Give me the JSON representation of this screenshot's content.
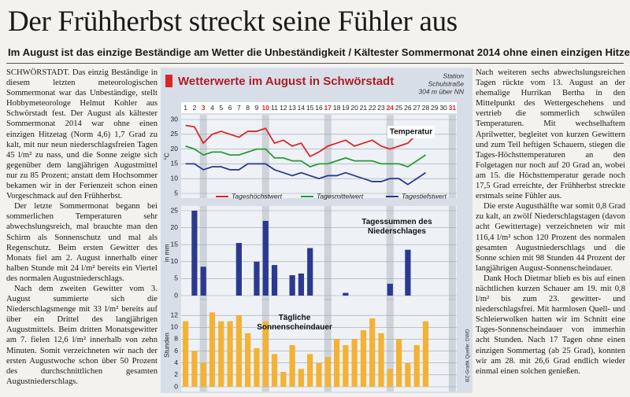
{
  "headline": "Der Frühherbst streckt seine Fühler aus",
  "subheadline": "Im August ist das einzige Beständige am Wetter die Unbeständigkeit / Kältester Sommermonat 2014 ohne einen einzigen Hitzetag",
  "article": {
    "column_1": [
      "SCHWÖRSTADT. Das einzig Beständige in diesem letzten meteorologischen Sommermonat war das Unbeständige, stellt Hobbymeteorologe Helmut Kohler aus Schwörstadt fest. Der August als kältester Sommermonat 2014 war ohne einen einzigen Hitzetag (Norm 4,6) 1,7 Grad zu kalt, mit nur neun niederschlagsfreien Tagen 45 l/m² zu nass, und die Sonne zeigte sich gegenüber dem langjährigen Augustmittel nur zu 85 Prozent; anstatt dem Hochsommer bekamen wir in der Ferienzeit schon einen Vorgeschmack auf den Frühherbst.",
      "Der letzte Sommermonat begann bei sommerlichen Temperaturen sehr abwechslungsreich, mal brauchte man den Schirm als Sonnenschutz und mal als Regenschutz. Beim ersten Gewitter des Monats fiel am 2. August innerhalb einer halben Stunde mit 24 l/m² bereits ein Viertel des normalen Augustniederschlags.",
      "Nach dem zweiten Gewitter vom 3. August summierte sich die Niederschlagsmenge mit 33 l/m² bereits auf über ein Drittel des langjährigen Augustmittels. Beim dritten Monatsgewitter am 7. fielen 12,6 l/m² innerhalb von zehn Minuten. Somit verzeichneten wir nach der ersten Augustwoche schon über 50 Prozent des durchschnittlichen gesamten Augustniederschlags."
    ],
    "column_2": [
      "Nach weiteren sechs abwechslungsreichen Tagen rückte vom 13. August an der ehemalige Hurrikan Bertha in den Mittelpunkt des Wettergeschehens und vertrieb die sommerlich schwülen Temperaturen. Mit wechselhaftem Aprilwetter, begleitet von kurzen Gewittern und zum Teil heftigen Schauern, stiegen die Tages-Höchsttemperaturen an den Folgetagen nur noch auf 20 Grad an, wobei am 15. die Höchsttemperatur gerade noch 17,5 Grad erreichte, der Frühherbst streckte erstmals seine Fühler aus.",
      "Die erste Augusthälfte war somit 0,8 Grad zu kalt, an zwölf Niederschlagstagen (davon acht Gewittertage) verzeichneten wir mit 116,4 l/m² schon 120 Prozent des normalen gesamten Augustniederschlags und die Sonne schien mit 98 Stunden 44 Prozent der langjährigen August-Sonnenscheindauer.",
      "Dank Hoch Dietmar blieb es bis auf einen nächtlichen kurzen Schauer am 19. mit 0,8 l/m² bis zum 23. gewitter- und niederschlagsfrei. Mit harmlosen Quell- und Schleierwolken hatten wir im Schnitt eine Tages-Sonnenscheindauer von immerhin acht Stunden. Nach 17 Tagen ohne einen einzigen Sommertag (ab 25 Grad), konnten wir am 28. mit 26,6 Grad endlich wieder einmal einen solchen genießen."
    ]
  },
  "graphic": {
    "title": "Wetterwerte im August in Schwörstadt",
    "station": [
      "Station",
      "Schulstraße",
      "304 m über NN"
    ],
    "credit": "BZ-Grafik Quelle: DWD"
  },
  "chart_data": [
    {
      "type": "line",
      "title": "Temperatur",
      "categories": [
        "1",
        "2",
        "3",
        "4",
        "5",
        "6",
        "7",
        "8",
        "9",
        "10",
        "11",
        "12",
        "13",
        "14",
        "15",
        "16",
        "17",
        "18",
        "19",
        "20",
        "21",
        "22",
        "23",
        "24",
        "25",
        "26",
        "27",
        "28",
        "29",
        "30",
        "31"
      ],
      "sundays": [
        3,
        10,
        17,
        24,
        31
      ],
      "sunday_color": "#d9262b",
      "ylabel": "°C",
      "ylim": [
        5,
        30
      ],
      "yticks": [
        5,
        10,
        15,
        20,
        25,
        30
      ],
      "grid": true,
      "series": [
        {
          "name": "Tageshöchstwert",
          "color": "#d9262b",
          "values": [
            28,
            27.5,
            22,
            25,
            26,
            25,
            24,
            26,
            26,
            27,
            22,
            23,
            21,
            22,
            17.5,
            19,
            21,
            22,
            23,
            21,
            22,
            23,
            21,
            20,
            21,
            22,
            25,
            26.6,
            null,
            null,
            null
          ]
        },
        {
          "name": "Tagesmittelwert",
          "color": "#2a9a3c",
          "values": [
            21,
            20,
            18,
            19,
            19,
            18,
            18,
            19,
            20,
            20,
            17,
            17,
            16,
            16,
            14,
            15,
            15,
            16,
            17,
            16,
            16,
            16,
            15,
            15,
            15,
            14,
            16,
            18,
            null,
            null,
            null
          ]
        },
        {
          "name": "Tagestiefstwert",
          "color": "#2b3990",
          "values": [
            15,
            15,
            13,
            14,
            14,
            13,
            13,
            15,
            15,
            15,
            13,
            12,
            11,
            12,
            11,
            10,
            11,
            11,
            12,
            11,
            10,
            9,
            9,
            10,
            10,
            8,
            10,
            12,
            null,
            null,
            null
          ]
        }
      ]
    },
    {
      "type": "bar",
      "title": "Tagessummen des Niederschlages",
      "ylabel": "in mm",
      "color": "#2b3990",
      "ylim": [
        0,
        25
      ],
      "yticks": [
        0,
        5,
        10,
        15,
        20,
        25
      ],
      "grid": true,
      "values": [
        0,
        25,
        8.5,
        0,
        0,
        0,
        15.5,
        0,
        10,
        22,
        9,
        0,
        6,
        6.5,
        14,
        0,
        0,
        0,
        0.8,
        0,
        0,
        0,
        0,
        3.5,
        0,
        13.5,
        0,
        0,
        null,
        null,
        null
      ]
    },
    {
      "type": "bar",
      "title": "Tägliche Sonnenscheindauer",
      "ylabel": "Stunden",
      "color": "#f4b234",
      "ylim": [
        0,
        14
      ],
      "yticks": [
        0,
        2,
        4,
        6,
        8,
        10,
        12
      ],
      "grid": true,
      "values": [
        11,
        6,
        4,
        12.5,
        11,
        11,
        12,
        9,
        6.5,
        11,
        5.5,
        2.5,
        7,
        3,
        5.5,
        4,
        5,
        8,
        7,
        8,
        9.5,
        11.5,
        9,
        3,
        8,
        4,
        7,
        11,
        null,
        null,
        null
      ]
    }
  ]
}
